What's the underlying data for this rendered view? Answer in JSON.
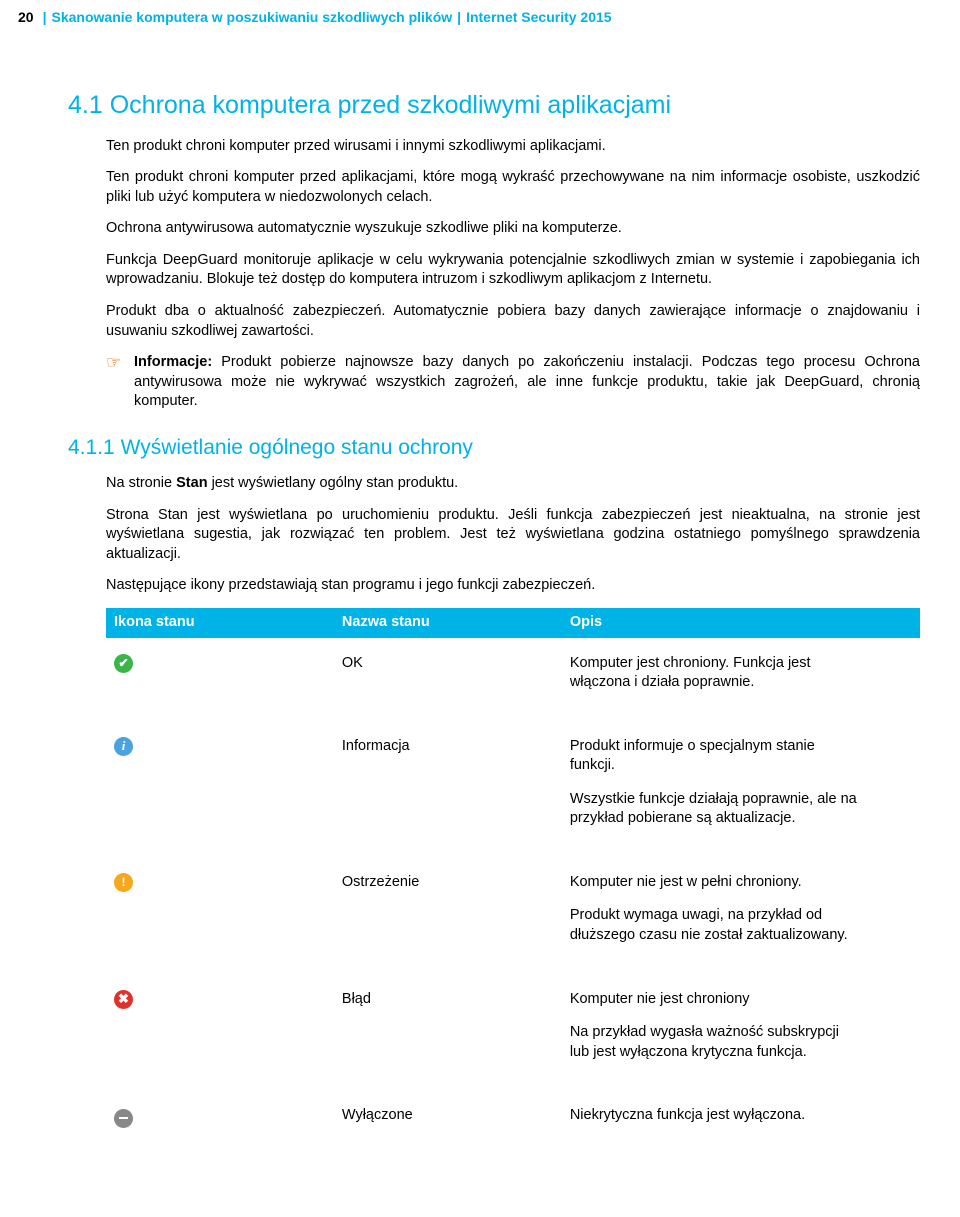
{
  "header": {
    "page_number": "20",
    "crumb1": "Skanowanie komputera w poszukiwaniu szkodliwych plików",
    "crumb2": "Internet Security 2015"
  },
  "colors": {
    "accent": "#00b3e6",
    "note_icon": "#e06000",
    "ok": "#3bb54a",
    "info": "#4aa3e0",
    "warn": "#f6a81c",
    "error": "#e0322c",
    "off": "#888888"
  },
  "section": {
    "number": "4.1",
    "title": "Ochrona komputera przed szkodliwymi aplikacjami",
    "paragraphs": [
      "Ten produkt chroni komputer przed wirusami i innymi szkodliwymi aplikacjami.",
      "Ten produkt chroni komputer przed aplikacjami, które mogą wykraść przechowywane na nim informacje osobiste, uszkodzić pliki lub użyć komputera w niedozwolonych celach.",
      "Ochrona antywirusowa automatycznie wyszukuje szkodliwe pliki na komputerze.",
      "Funkcja DeepGuard monitoruje aplikacje w celu wykrywania potencjalnie szkodliwych zmian w systemie i zapobiegania ich wprowadzaniu. Blokuje też dostęp do komputera intruzom i szkodliwym aplikacjom z Internetu.",
      "Produkt dba o aktualność zabezpieczeń. Automatycznie pobiera bazy danych zawierające informacje o znajdowaniu i usuwaniu szkodliwej zawartości."
    ],
    "note": {
      "label": "Informacje:",
      "text": "Produkt pobierze najnowsze bazy danych po zakończeniu instalacji. Podczas tego procesu Ochrona antywirusowa może nie wykrywać wszystkich zagrożeń, ale inne funkcje produktu, takie jak DeepGuard, chronią komputer."
    }
  },
  "subsection": {
    "number": "4.1.1",
    "title": "Wyświetlanie ogólnego stanu ochrony",
    "paragraphs": [
      {
        "pre": "Na stronie ",
        "bold": "Stan",
        "post": " jest wyświetlany ogólny stan produktu."
      },
      {
        "full": "Strona Stan jest wyświetlana po uruchomieniu produktu. Jeśli funkcja zabezpieczeń jest nieaktualna, na stronie jest wyświetlana sugestia, jak rozwiązać ten problem. Jest też wyświetlana godzina ostatniego pomyślnego sprawdzenia aktualizacji."
      },
      {
        "full": "Następujące ikony przedstawiają stan programu i jego funkcji zabezpieczeń."
      }
    ]
  },
  "table": {
    "columns": [
      "Ikona stanu",
      "Nazwa stanu",
      "Opis"
    ],
    "rows": [
      {
        "icon": "ok",
        "glyph": "✔",
        "name": "OK",
        "desc": [
          "Komputer jest chroniony. Funkcja jest włączona i działa poprawnie."
        ]
      },
      {
        "icon": "info",
        "glyph": "i",
        "name": "Informacja",
        "desc": [
          "Produkt informuje o specjalnym stanie funkcji.",
          "Wszystkie funkcje działają poprawnie, ale na przykład pobierane są aktualizacje."
        ]
      },
      {
        "icon": "warn",
        "glyph": "!",
        "name": "Ostrzeżenie",
        "desc": [
          "Komputer nie jest w pełni chroniony.",
          "Produkt wymaga uwagi, na przykład od dłuższego czasu nie został zaktualizowany."
        ]
      },
      {
        "icon": "err",
        "glyph": "✖",
        "name": "Błąd",
        "desc": [
          "Komputer nie jest chroniony",
          "Na przykład wygasła ważność subskrypcji lub jest wyłączona krytyczna funkcja."
        ]
      },
      {
        "icon": "off",
        "glyph": "",
        "name": "Wyłączone",
        "desc": [
          "Niekrytyczna funkcja jest wyłączona."
        ]
      }
    ]
  }
}
